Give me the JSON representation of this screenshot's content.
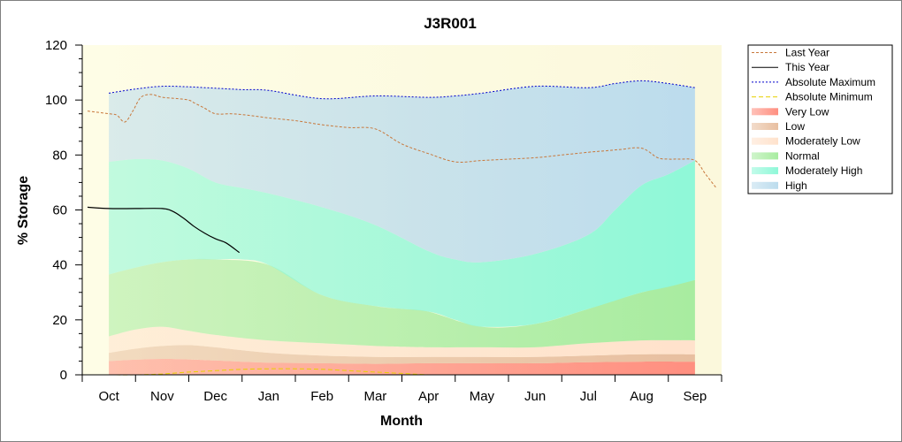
{
  "chart_data": {
    "type": "area",
    "title": "J3R001",
    "xlabel": "Month",
    "ylabel": "% Storage",
    "ylim": [
      0,
      120
    ],
    "yticks": [
      "0",
      "20",
      "40",
      "60",
      "80",
      "100",
      "120"
    ],
    "months": [
      "Oct",
      "Nov",
      "Dec",
      "Jan",
      "Feb",
      "Mar",
      "Apr",
      "May",
      "Jun",
      "Jul",
      "Aug",
      "Sep"
    ],
    "xlim": [
      0.5,
      12.5
    ],
    "grid": false,
    "legend_position": "right",
    "bands": [
      {
        "name": "Very Low",
        "color": "#ff8f80",
        "x": [
          1,
          1.5,
          2,
          2.5,
          3,
          4,
          5,
          6,
          7,
          8,
          9,
          10,
          11,
          12
        ],
        "lower": [
          0,
          0,
          0,
          0,
          0,
          0,
          0,
          0,
          0,
          0,
          0,
          0,
          0,
          0
        ],
        "upper": [
          5,
          5.5,
          5.8,
          5.6,
          5.2,
          4.4,
          4.2,
          4,
          4.2,
          4.2,
          4.2,
          4.6,
          4.8,
          4.8
        ]
      },
      {
        "name": "Low",
        "color": "#e8bfa0",
        "x": [
          1,
          1.5,
          2,
          2.5,
          3,
          4,
          5,
          6,
          7,
          8,
          9,
          10,
          11,
          12
        ],
        "lower": [
          5,
          5.5,
          5.8,
          5.6,
          5.2,
          4.4,
          4.2,
          4,
          4.2,
          4.2,
          4.2,
          4.6,
          4.8,
          4.8
        ],
        "upper": [
          8,
          9.5,
          10.5,
          10.8,
          10,
          8,
          7,
          6.5,
          6.5,
          6.5,
          6.5,
          7,
          7.5,
          7.5
        ]
      },
      {
        "name": "Moderately Low",
        "color": "#ffe2cc",
        "x": [
          1,
          1.5,
          2,
          2.5,
          3,
          4,
          5,
          6,
          7,
          8,
          9,
          10,
          11,
          12
        ],
        "lower": [
          8,
          9.5,
          10.5,
          10.8,
          10,
          8,
          7,
          6.5,
          6.5,
          6.5,
          6.5,
          7,
          7.5,
          7.5
        ],
        "upper": [
          14,
          16.5,
          17.5,
          16,
          14.5,
          12.5,
          11.5,
          10.5,
          10,
          10,
          10,
          11.5,
          12.5,
          12.5
        ]
      },
      {
        "name": "Normal",
        "color": "#a8eca0",
        "x": [
          1,
          1.5,
          2,
          2.5,
          3,
          4,
          5,
          6,
          6.5,
          7,
          8,
          9,
          10,
          11,
          12
        ],
        "lower": [
          14,
          16.5,
          17.5,
          16,
          14.5,
          12.5,
          11.5,
          10.5,
          10.2,
          10,
          10,
          10,
          11.5,
          12.5,
          12.5
        ],
        "upper": [
          36.5,
          39,
          41,
          42,
          42,
          40,
          29,
          25,
          24,
          23,
          17.5,
          18.5,
          24,
          30,
          34.5
        ]
      },
      {
        "name": "Moderately High",
        "color": "#8ff8d8",
        "x": [
          1,
          1.5,
          2,
          2.5,
          3,
          3.5,
          4,
          5,
          6,
          7,
          7.5,
          8,
          9,
          10,
          10.5,
          11,
          11.5,
          12
        ],
        "lower": [
          36.5,
          39,
          41,
          42,
          42,
          42,
          40,
          29,
          25,
          23,
          20,
          17.5,
          18.5,
          24,
          27,
          30,
          32,
          34.5
        ],
        "upper": [
          77.5,
          78.5,
          78,
          75,
          70,
          68,
          66,
          61,
          54.5,
          45,
          42,
          41,
          44,
          51,
          60,
          69,
          73,
          78
        ]
      },
      {
        "name": "High",
        "color": "#bcdced",
        "x": [
          1,
          1.5,
          2,
          2.5,
          3,
          3.5,
          4,
          5,
          6,
          7,
          7.5,
          8,
          9,
          10,
          10.5,
          11,
          11.5,
          12
        ],
        "lower": [
          77.5,
          78.5,
          78,
          75,
          70,
          68,
          66,
          61,
          54.5,
          45,
          42,
          41,
          44,
          51,
          60,
          69,
          73,
          78
        ],
        "upper": [
          102.5,
          104,
          105,
          104.8,
          104.3,
          103.8,
          103.5,
          100.5,
          101.5,
          101,
          101.5,
          102.5,
          105,
          104.5,
          106,
          107,
          106,
          104.5
        ]
      }
    ],
    "series": [
      {
        "name": "Last Year",
        "color": "#c8783c",
        "dash": "3,2",
        "x": [
          0.6,
          1,
          1.15,
          1.3,
          1.45,
          1.6,
          1.8,
          2,
          2.3,
          2.5,
          2.6,
          2.8,
          3,
          3.3,
          3.6,
          4,
          4.5,
          5,
          5.5,
          6,
          6.5,
          7,
          7.5,
          8,
          8.5,
          9,
          9.5,
          10,
          10.3,
          10.6,
          11,
          11.3,
          11.5,
          11.7,
          12,
          12.2,
          12.4
        ],
        "y": [
          96,
          95,
          94.5,
          92,
          96,
          101,
          102,
          101,
          100.5,
          100,
          99,
          97,
          95,
          95,
          94.5,
          93.5,
          92.5,
          91,
          90,
          89.5,
          84,
          80.5,
          77.5,
          78,
          78.5,
          79,
          80,
          81,
          81.5,
          82,
          82.5,
          79,
          78.5,
          78.5,
          78,
          73,
          68
        ]
      },
      {
        "name": "This Year",
        "color": "#000000",
        "dash": "",
        "x": [
          0.6,
          1,
          1.5,
          2,
          2.2,
          2.4,
          2.6,
          2.8,
          3,
          3.2,
          3.45
        ],
        "y": [
          61,
          60.5,
          60.5,
          60.5,
          59.5,
          57,
          54,
          51.5,
          49.5,
          48,
          44.5
        ]
      },
      {
        "name": "Absolute Maximum",
        "color": "#0000cc",
        "dash": "2,2",
        "x": [
          1,
          1.5,
          2,
          2.5,
          3,
          3.5,
          4,
          5,
          6,
          7,
          7.5,
          8,
          9,
          10,
          10.5,
          11,
          11.5,
          12
        ],
        "y": [
          102.5,
          104,
          105,
          104.8,
          104.3,
          103.8,
          103.5,
          100.5,
          101.5,
          101,
          101.5,
          102.5,
          105,
          104.5,
          106,
          107,
          106,
          104.5
        ]
      },
      {
        "name": "Absolute Minimum",
        "color": "#e8d000",
        "dash": "5,3",
        "x": [
          1,
          1.5,
          2,
          2.5,
          3,
          3.5,
          4,
          4.5,
          5,
          5.5,
          6,
          6.5,
          7
        ],
        "y": [
          0,
          0,
          0.3,
          1,
          1.5,
          2,
          2.2,
          2.2,
          2,
          1.5,
          1,
          0.5,
          0
        ]
      }
    ],
    "legend": [
      {
        "label": "Last Year",
        "kind": "line",
        "color": "#c8783c",
        "dash": "3,2"
      },
      {
        "label": "This Year",
        "kind": "line",
        "color": "#000000",
        "dash": ""
      },
      {
        "label": "Absolute Maximum",
        "kind": "line",
        "color": "#0000cc",
        "dash": "2,2"
      },
      {
        "label": "Absolute Minimum",
        "kind": "line",
        "color": "#e8d000",
        "dash": "5,3"
      },
      {
        "label": "Very Low",
        "kind": "band",
        "color": "#ff8f80"
      },
      {
        "label": "Low",
        "kind": "band",
        "color": "#e8bfa0"
      },
      {
        "label": "Moderately Low",
        "kind": "band",
        "color": "#ffe2cc"
      },
      {
        "label": "Normal",
        "kind": "band",
        "color": "#a8eca0"
      },
      {
        "label": "Moderately High",
        "kind": "band",
        "color": "#8ff8d8"
      },
      {
        "label": "High",
        "kind": "band",
        "color": "#bcdced"
      }
    ],
    "plot_background": "#fefde6"
  }
}
